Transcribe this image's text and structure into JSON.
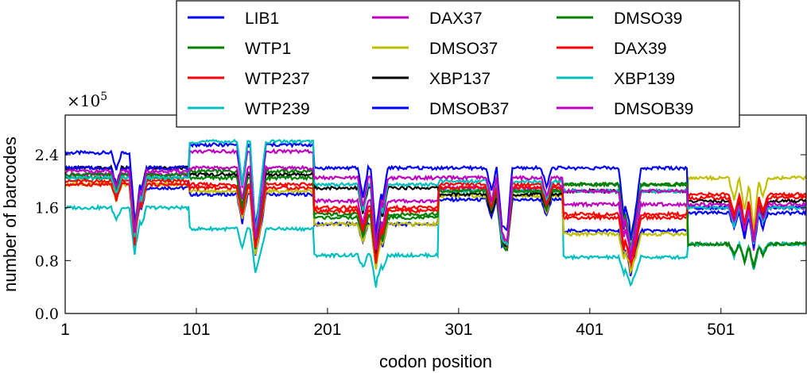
{
  "chart_data": {
    "type": "line",
    "title": "",
    "xlabel": "codon position",
    "ylabel": "number of barcodes",
    "y_multiplier": "×10",
    "y_multiplier_exp": "5",
    "xlim": [
      1,
      566
    ],
    "ylim": [
      0,
      3.0
    ],
    "xticks": [
      1,
      101,
      201,
      301,
      401,
      501
    ],
    "xtick_labels": [
      "1",
      "101",
      "201",
      "301",
      "401",
      "501"
    ],
    "yticks": [
      0.0,
      0.8,
      1.6,
      2.4
    ],
    "ytick_labels": [
      "0.0",
      "0.8",
      "1.6",
      "2.4"
    ],
    "grid": false,
    "legend_placement": "top-center",
    "series": [
      {
        "name": "LIB1",
        "color": "#0000ff",
        "values": [
          [
            1,
            2.43
          ],
          [
            40,
            2.43
          ],
          [
            55,
            1.9
          ],
          [
            95,
            2.0
          ],
          [
            96,
            1.8
          ],
          [
            190,
            1.8
          ],
          [
            191,
            1.35
          ],
          [
            285,
            1.38
          ],
          [
            286,
            1.72
          ],
          [
            380,
            1.72
          ],
          [
            381,
            1.25
          ],
          [
            475,
            1.25
          ],
          [
            476,
            1.52
          ],
          [
            566,
            1.55
          ]
        ]
      },
      {
        "name": "WTP1",
        "color": "#008000",
        "values": [
          [
            1,
            2.05
          ],
          [
            95,
            2.05
          ],
          [
            96,
            2.15
          ],
          [
            190,
            2.15
          ],
          [
            191,
            1.5
          ],
          [
            285,
            1.5
          ],
          [
            286,
            1.85
          ],
          [
            380,
            1.85
          ],
          [
            381,
            1.95
          ],
          [
            475,
            1.95
          ],
          [
            476,
            1.05
          ],
          [
            566,
            1.08
          ]
        ]
      },
      {
        "name": "WTP237",
        "color": "#ff0000",
        "values": [
          [
            1,
            2.0
          ],
          [
            95,
            2.0
          ],
          [
            96,
            1.95
          ],
          [
            190,
            1.95
          ],
          [
            191,
            1.6
          ],
          [
            285,
            1.6
          ],
          [
            286,
            1.95
          ],
          [
            380,
            1.95
          ],
          [
            381,
            1.45
          ],
          [
            475,
            1.45
          ],
          [
            476,
            1.8
          ],
          [
            566,
            1.8
          ]
        ]
      },
      {
        "name": "WTP239",
        "color": "#00bfbf",
        "values": [
          [
            1,
            1.6
          ],
          [
            95,
            1.6
          ],
          [
            96,
            1.28
          ],
          [
            190,
            1.28
          ],
          [
            191,
            0.88
          ],
          [
            285,
            0.88
          ],
          [
            286,
            1.85
          ],
          [
            380,
            1.85
          ],
          [
            381,
            0.85
          ],
          [
            475,
            0.85
          ],
          [
            476,
            1.05
          ],
          [
            566,
            1.05
          ]
        ]
      },
      {
        "name": "DAX37",
        "color": "#bf00bf",
        "values": [
          [
            1,
            2.1
          ],
          [
            95,
            2.1
          ],
          [
            96,
            2.45
          ],
          [
            190,
            2.45
          ],
          [
            191,
            1.7
          ],
          [
            285,
            1.7
          ],
          [
            286,
            1.9
          ],
          [
            380,
            1.9
          ],
          [
            381,
            1.65
          ],
          [
            475,
            1.65
          ],
          [
            476,
            1.6
          ],
          [
            566,
            1.6
          ]
        ]
      },
      {
        "name": "DMSO37",
        "color": "#bfbf00",
        "values": [
          [
            1,
            1.95
          ],
          [
            95,
            1.95
          ],
          [
            96,
            1.85
          ],
          [
            190,
            1.85
          ],
          [
            191,
            1.35
          ],
          [
            285,
            1.35
          ],
          [
            286,
            1.78
          ],
          [
            380,
            1.78
          ],
          [
            381,
            1.2
          ],
          [
            475,
            1.2
          ],
          [
            476,
            2.05
          ],
          [
            566,
            2.05
          ]
        ]
      },
      {
        "name": "XBP137",
        "color": "#000000",
        "values": [
          [
            1,
            2.2
          ],
          [
            95,
            2.2
          ],
          [
            96,
            2.1
          ],
          [
            190,
            2.1
          ],
          [
            191,
            1.9
          ],
          [
            285,
            1.9
          ],
          [
            286,
            1.8
          ],
          [
            380,
            1.8
          ],
          [
            381,
            1.85
          ],
          [
            475,
            1.85
          ],
          [
            476,
            1.7
          ],
          [
            566,
            1.7
          ]
        ]
      },
      {
        "name": "DMSOB37",
        "color": "#0000ff",
        "values": [
          [
            1,
            2.2
          ],
          [
            95,
            2.2
          ],
          [
            96,
            2.55
          ],
          [
            190,
            2.55
          ],
          [
            191,
            2.2
          ],
          [
            285,
            2.2
          ],
          [
            286,
            2.2
          ],
          [
            380,
            2.2
          ],
          [
            381,
            2.2
          ],
          [
            475,
            2.2
          ],
          [
            476,
            1.6
          ],
          [
            566,
            1.6
          ]
        ]
      },
      {
        "name": "DMSO39",
        "color": "#008000",
        "values": [
          [
            1,
            2.1
          ],
          [
            95,
            2.1
          ],
          [
            96,
            2.05
          ],
          [
            190,
            2.05
          ],
          [
            191,
            1.45
          ],
          [
            285,
            1.45
          ],
          [
            286,
            1.85
          ],
          [
            380,
            1.85
          ],
          [
            381,
            1.95
          ],
          [
            475,
            1.95
          ],
          [
            476,
            1.05
          ],
          [
            566,
            1.05
          ]
        ]
      },
      {
        "name": "DAX39",
        "color": "#ff0000",
        "values": [
          [
            1,
            1.95
          ],
          [
            95,
            1.95
          ],
          [
            96,
            1.9
          ],
          [
            190,
            1.9
          ],
          [
            191,
            1.55
          ],
          [
            285,
            1.55
          ],
          [
            286,
            1.9
          ],
          [
            380,
            1.9
          ],
          [
            381,
            1.5
          ],
          [
            475,
            1.5
          ],
          [
            476,
            1.75
          ],
          [
            566,
            1.75
          ]
        ]
      },
      {
        "name": "XBP139",
        "color": "#00bfbf",
        "values": [
          [
            1,
            2.05
          ],
          [
            95,
            2.05
          ],
          [
            96,
            2.6
          ],
          [
            190,
            2.6
          ],
          [
            191,
            1.95
          ],
          [
            285,
            1.95
          ],
          [
            286,
            2.0
          ],
          [
            380,
            2.0
          ],
          [
            381,
            1.85
          ],
          [
            475,
            1.85
          ],
          [
            476,
            1.6
          ],
          [
            566,
            1.6
          ]
        ]
      },
      {
        "name": "DMSOB39",
        "color": "#bf00bf",
        "values": [
          [
            1,
            2.15
          ],
          [
            95,
            2.15
          ],
          [
            96,
            2.2
          ],
          [
            190,
            2.2
          ],
          [
            191,
            2.05
          ],
          [
            285,
            2.05
          ],
          [
            286,
            2.05
          ],
          [
            380,
            2.05
          ],
          [
            381,
            1.85
          ],
          [
            475,
            1.85
          ],
          [
            476,
            1.65
          ],
          [
            566,
            1.65
          ]
        ]
      }
    ],
    "dips": [
      {
        "x": 40,
        "depth": 0.25
      },
      {
        "x": 54,
        "depth": 0.95
      },
      {
        "x": 59,
        "depth": 0.35
      },
      {
        "x": 136,
        "depth": 0.5
      },
      {
        "x": 146,
        "depth": 1.1
      },
      {
        "x": 150,
        "depth": 0.6
      },
      {
        "x": 228,
        "depth": 0.45
      },
      {
        "x": 238,
        "depth": 1.1
      },
      {
        "x": 243,
        "depth": 0.5
      },
      {
        "x": 326,
        "depth": 0.35
      },
      {
        "x": 334,
        "depth": 0.9
      },
      {
        "x": 338,
        "depth": 1.0
      },
      {
        "x": 368,
        "depth": 0.3
      },
      {
        "x": 427,
        "depth": 0.7
      },
      {
        "x": 432,
        "depth": 1.1
      },
      {
        "x": 436,
        "depth": 0.6
      },
      {
        "x": 511,
        "depth": 0.35
      },
      {
        "x": 519,
        "depth": 0.5
      },
      {
        "x": 526,
        "depth": 0.8
      },
      {
        "x": 533,
        "depth": 0.3
      }
    ]
  }
}
